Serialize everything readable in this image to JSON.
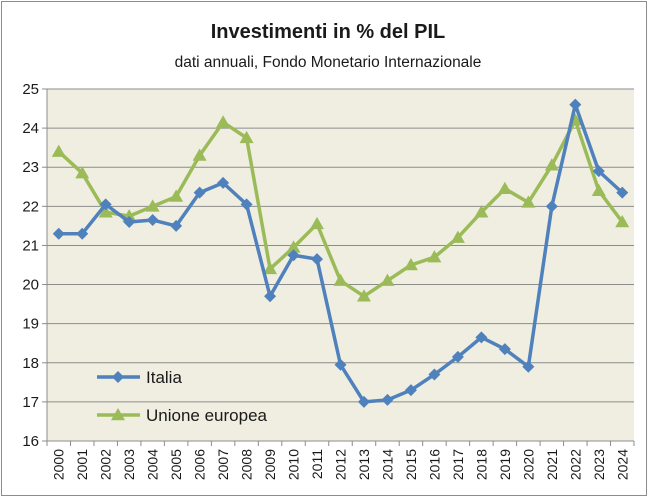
{
  "chart_data": {
    "type": "line",
    "title": "Investimenti in % del PIL",
    "subtitle": "dati annuali, Fondo Monetario Internazionale",
    "xlabel": "",
    "ylabel": "",
    "ylim": [
      16,
      25
    ],
    "yticks": [
      16,
      17,
      18,
      19,
      20,
      21,
      22,
      23,
      24,
      25
    ],
    "grid": true,
    "legend_position": "bottom-left",
    "plot_background": "#efeee0",
    "x": [
      "2000",
      "2001",
      "2002",
      "2003",
      "2004",
      "2005",
      "2006",
      "2007",
      "2008",
      "2009",
      "2010",
      "2011",
      "2012",
      "2013",
      "2014",
      "2015",
      "2016",
      "2017",
      "2018",
      "2019",
      "2020",
      "2021",
      "2022",
      "2023",
      "2024"
    ],
    "series": [
      {
        "name": "Italia",
        "color": "#4f81bd",
        "marker": "diamond",
        "values": [
          21.3,
          21.3,
          22.05,
          21.6,
          21.65,
          21.5,
          22.35,
          22.6,
          22.05,
          19.7,
          20.75,
          20.65,
          17.95,
          17.0,
          17.05,
          17.3,
          17.7,
          18.15,
          18.65,
          18.35,
          17.9,
          22.0,
          24.6,
          22.9,
          22.35
        ]
      },
      {
        "name": "Unione europea",
        "color": "#9bbb59",
        "marker": "triangle",
        "values": [
          23.4,
          22.85,
          21.85,
          21.75,
          22.0,
          22.25,
          23.3,
          24.15,
          23.75,
          20.4,
          20.95,
          21.55,
          20.1,
          19.7,
          20.1,
          20.5,
          20.7,
          21.2,
          21.85,
          22.45,
          22.1,
          23.05,
          24.2,
          22.4,
          21.6
        ]
      }
    ]
  }
}
